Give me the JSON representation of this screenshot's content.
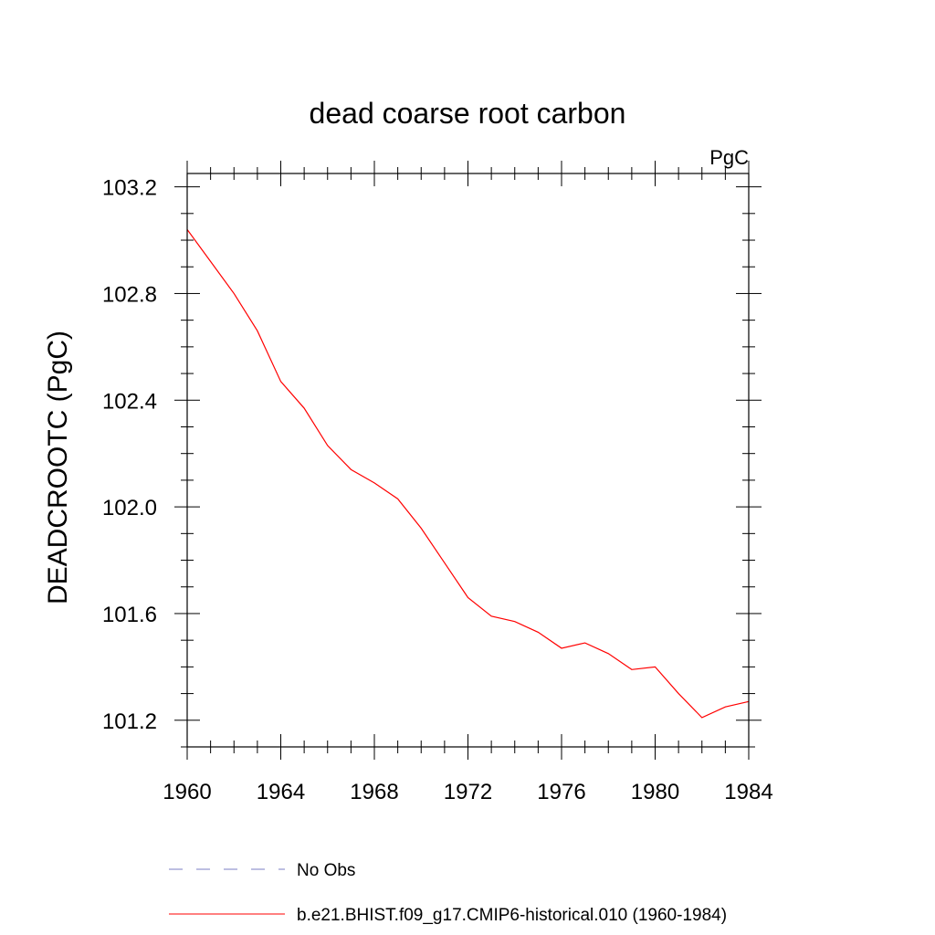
{
  "chart_data": {
    "type": "line",
    "title": "dead coarse root carbon",
    "units_label": "PgC",
    "ylabel": "DEADCROOTC  (PgC)",
    "xlabel": "",
    "xlim": [
      1960,
      1984
    ],
    "ylim": [
      101.1,
      103.25
    ],
    "xticks": [
      1960,
      1964,
      1968,
      1972,
      1976,
      1980,
      1984
    ],
    "yticks": [
      101.2,
      101.6,
      102.0,
      102.4,
      102.8,
      103.2
    ],
    "x_minor_step": 1,
    "y_minor_step": 0.1,
    "grid": false,
    "series": [
      {
        "name": "No Obs",
        "color": "#7b7fc4",
        "dash": "dashed",
        "x": [],
        "values": []
      },
      {
        "name": "b.e21.BHIST.f09_g17.CMIP6-historical.010 (1960-1984)",
        "color": "#ff0000",
        "dash": "solid",
        "x": [
          1960,
          1961,
          1962,
          1963,
          1964,
          1965,
          1966,
          1967,
          1968,
          1969,
          1970,
          1971,
          1972,
          1973,
          1974,
          1975,
          1976,
          1977,
          1978,
          1979,
          1980,
          1981,
          1982,
          1983,
          1984
        ],
        "values": [
          103.04,
          102.92,
          102.8,
          102.66,
          102.47,
          102.37,
          102.23,
          102.14,
          102.09,
          102.03,
          101.92,
          101.79,
          101.66,
          101.59,
          101.57,
          101.53,
          101.47,
          101.49,
          101.45,
          101.39,
          101.4,
          101.3,
          101.21,
          101.25,
          101.27
        ]
      }
    ]
  }
}
